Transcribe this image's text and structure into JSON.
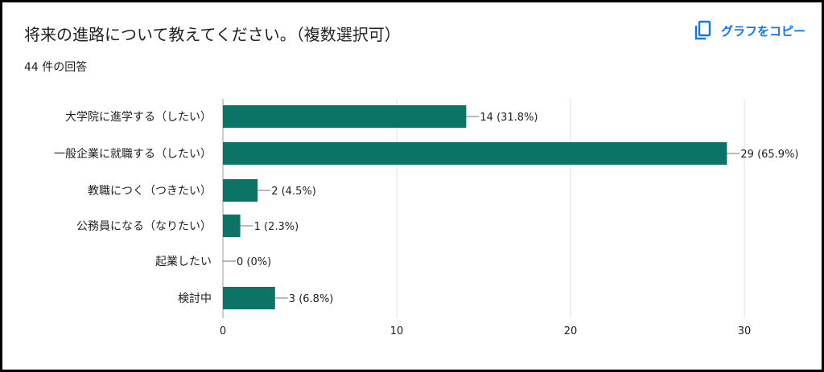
{
  "header": {
    "title": "将来の進路について教えてください。（複数選択可）",
    "response_count": "44 件の回答",
    "copy_label": "グラフをコピー",
    "copy_icon": "copy-icon"
  },
  "colors": {
    "bar": "#0b7467",
    "accent": "#1a73e8",
    "grid": "#e0e0e0"
  },
  "chart_data": {
    "type": "bar",
    "orientation": "horizontal",
    "categories": [
      "大学院に進学する（したい）",
      "一般企業に就職する（したい）",
      "教職につく（つきたい）",
      "公務員になる（なりたい）",
      "起業したい",
      "検討中"
    ],
    "values": [
      14,
      29,
      2,
      1,
      0,
      3
    ],
    "value_labels": [
      "14 (31.8%)",
      "29 (65.9%)",
      "2 (4.5%)",
      "1 (2.3%)",
      "0 (0%)",
      "3 (6.8%)"
    ],
    "xticks": [
      0,
      10,
      20,
      30
    ],
    "xlim": [
      0,
      30
    ],
    "grid": true
  }
}
